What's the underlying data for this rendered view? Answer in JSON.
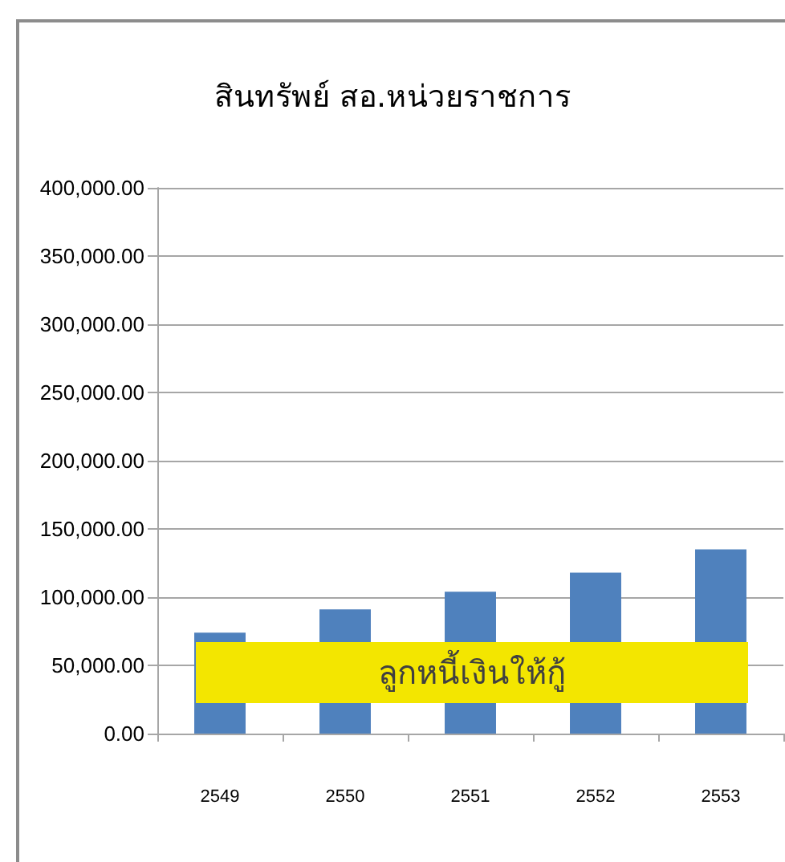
{
  "chart_data": {
    "type": "bar",
    "title": "สินทรัพย์ สอ.หน่วยราชการ",
    "categories": [
      "2549",
      "2550",
      "2551",
      "2552",
      "2553"
    ],
    "values": [
      74000,
      91000,
      104000,
      118000,
      135000
    ],
    "color": "#4f81bd",
    "ylim": [
      0,
      400000
    ],
    "yticks": [
      {
        "value": 0,
        "label": "0.00"
      },
      {
        "value": 50000,
        "label": "50,000.00"
      },
      {
        "value": 100000,
        "label": "100,000.00"
      },
      {
        "value": 150000,
        "label": "150,000.00"
      },
      {
        "value": 200000,
        "label": "200,000.00"
      },
      {
        "value": 250000,
        "label": "250,000.00"
      },
      {
        "value": 300000,
        "label": "300,000.00"
      },
      {
        "value": 350000,
        "label": "350,000.00"
      },
      {
        "value": 400000,
        "label": "400,000.00"
      }
    ],
    "grid": "y",
    "annotations": [
      "ลูกหนี้เงินให้กู้"
    ]
  }
}
